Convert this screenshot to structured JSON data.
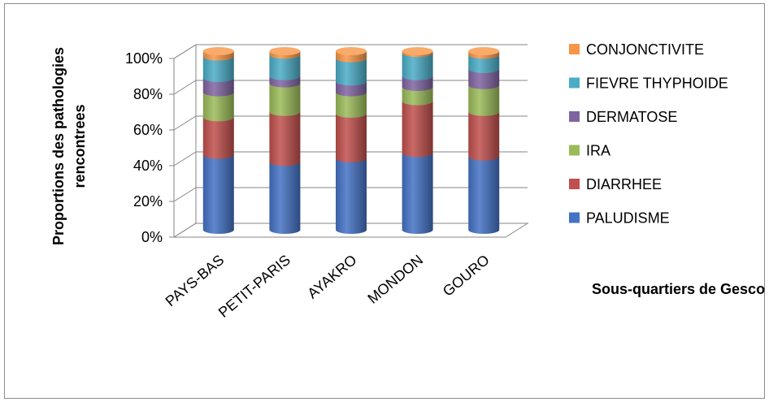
{
  "chart_data": {
    "type": "bar",
    "stacked": true,
    "percent": true,
    "three_d": true,
    "categories": [
      "PAYS-BAS",
      "PETIT-PARIS",
      "AYAKRO",
      "MONDON",
      "GOURO"
    ],
    "series": [
      {
        "name": "PALUDISME",
        "color": "#4472C4",
        "values": [
          42,
          38,
          40,
          43,
          41
        ]
      },
      {
        "name": "DIARRHEE",
        "color": "#C0504D",
        "values": [
          21,
          28,
          25,
          29,
          25
        ]
      },
      {
        "name": "IRA",
        "color": "#9BBB59",
        "values": [
          14,
          16,
          12,
          8,
          15
        ]
      },
      {
        "name": "DERMATOSE",
        "color": "#8064A2",
        "values": [
          8,
          4,
          6,
          6,
          9
        ]
      },
      {
        "name": "FIEVRE THYPHOIDE",
        "color": "#4BACC6",
        "values": [
          12,
          12,
          13,
          13,
          8
        ]
      },
      {
        "name": "CONJONCTIVITE",
        "color": "#F79646",
        "values": [
          3,
          2,
          4,
          1,
          2
        ]
      }
    ],
    "xlabel": "Sous-quartiers de Gesco",
    "ylabel": [
      "Proportions des pathologies",
      "rencontrees"
    ],
    "yticks": [
      "0%",
      "20%",
      "40%",
      "60%",
      "80%",
      "100%"
    ],
    "ylim": [
      0,
      100
    ],
    "grid": true,
    "legend_position": "right"
  }
}
